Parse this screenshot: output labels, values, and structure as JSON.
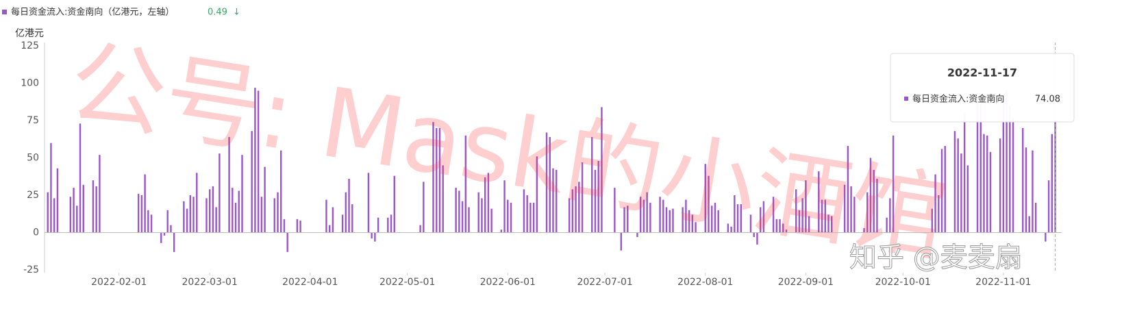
{
  "chart_data": {
    "type": "bar",
    "legend_change": 0.49,
    "legend_arrow": "↓",
    "y_unit_label": "亿港元",
    "tooltip_label": "每日资金流入:资金南向",
    "watermarks": [
      "公号: Mask的小酒馆",
      "知乎 @麦麦扇"
    ],
    "x": [
      "2022-01-10",
      "2022-01-11",
      "2022-01-12",
      "2022-01-13",
      "2022-01-17",
      "2022-01-18",
      "2022-01-19",
      "2022-01-20",
      "2022-01-21",
      "2022-01-24",
      "2022-01-25",
      "2022-01-26",
      "2022-02-07",
      "2022-02-08",
      "2022-02-09",
      "2022-02-10",
      "2022-02-11",
      "2022-02-14",
      "2022-02-15",
      "2022-02-16",
      "2022-02-17",
      "2022-02-18",
      "2022-02-21",
      "2022-02-22",
      "2022-02-23",
      "2022-02-24",
      "2022-02-25",
      "2022-02-28",
      "2022-03-01",
      "2022-03-02",
      "2022-03-03",
      "2022-03-04",
      "2022-03-07",
      "2022-03-08",
      "2022-03-09",
      "2022-03-10",
      "2022-03-11",
      "2022-03-14",
      "2022-03-15",
      "2022-03-16",
      "2022-03-17",
      "2022-03-18",
      "2022-03-21",
      "2022-03-22",
      "2022-03-23",
      "2022-03-24",
      "2022-03-25",
      "2022-03-28",
      "2022-03-29",
      "2022-04-06",
      "2022-04-07",
      "2022-04-08",
      "2022-04-11",
      "2022-04-12",
      "2022-04-13",
      "2022-04-14",
      "2022-04-19",
      "2022-04-20",
      "2022-04-21",
      "2022-04-22",
      "2022-04-25",
      "2022-04-26",
      "2022-04-27",
      "2022-05-05",
      "2022-05-06",
      "2022-05-09",
      "2022-05-10",
      "2022-05-11",
      "2022-05-12",
      "2022-05-16",
      "2022-05-17",
      "2022-05-18",
      "2022-05-19",
      "2022-05-20",
      "2022-05-23",
      "2022-05-24",
      "2022-05-25",
      "2022-05-26",
      "2022-05-27",
      "2022-05-30",
      "2022-05-31",
      "2022-06-01",
      "2022-06-02",
      "2022-06-06",
      "2022-06-07",
      "2022-06-08",
      "2022-06-09",
      "2022-06-10",
      "2022-06-13",
      "2022-06-14",
      "2022-06-15",
      "2022-06-16",
      "2022-06-20",
      "2022-06-21",
      "2022-06-22",
      "2022-06-23",
      "2022-06-24",
      "2022-06-27",
      "2022-06-28",
      "2022-06-29",
      "2022-06-30",
      "2022-07-04",
      "2022-07-06",
      "2022-07-07",
      "2022-07-08",
      "2022-07-11",
      "2022-07-12",
      "2022-07-13",
      "2022-07-14",
      "2022-07-15",
      "2022-07-18",
      "2022-07-19",
      "2022-07-20",
      "2022-07-21",
      "2022-07-22",
      "2022-07-25",
      "2022-07-26",
      "2022-07-27",
      "2022-07-28",
      "2022-07-29",
      "2022-08-01",
      "2022-08-02",
      "2022-08-03",
      "2022-08-04",
      "2022-08-05",
      "2022-08-08",
      "2022-08-09",
      "2022-08-10",
      "2022-08-11",
      "2022-08-12",
      "2022-08-15",
      "2022-08-16",
      "2022-08-17",
      "2022-08-18",
      "2022-08-19",
      "2022-08-22",
      "2022-08-23",
      "2022-08-24",
      "2022-08-25",
      "2022-08-26",
      "2022-08-29",
      "2022-08-30",
      "2022-08-31",
      "2022-09-01",
      "2022-09-02",
      "2022-09-05",
      "2022-09-06",
      "2022-09-07",
      "2022-09-08",
      "2022-09-09",
      "2022-09-13",
      "2022-09-14",
      "2022-09-15",
      "2022-09-16",
      "2022-09-19",
      "2022-09-20",
      "2022-09-21",
      "2022-09-22",
      "2022-09-23",
      "2022-09-26",
      "2022-09-27",
      "2022-09-28",
      "2022-10-10",
      "2022-10-11",
      "2022-10-12",
      "2022-10-13",
      "2022-10-14",
      "2022-10-17",
      "2022-10-18",
      "2022-10-19",
      "2022-10-20",
      "2022-10-21",
      "2022-10-24",
      "2022-10-25",
      "2022-10-26",
      "2022-10-27",
      "2022-10-28",
      "2022-10-31",
      "2022-11-01",
      "2022-11-02",
      "2022-11-03",
      "2022-11-04",
      "2022-11-07",
      "2022-11-08",
      "2022-11-09",
      "2022-11-10",
      "2022-11-11",
      "2022-11-14",
      "2022-11-15",
      "2022-11-16",
      "2022-11-17"
    ],
    "series": [
      {
        "name": "每日资金流入:资金南向（亿港元，左轴）",
        "color": "#9b55cc",
        "values": [
          27,
          60,
          23,
          43,
          24,
          30,
          18,
          73,
          32,
          35,
          31,
          52,
          26,
          25,
          39,
          15,
          12,
          -7,
          -2,
          15,
          5,
          -13,
          21,
          16,
          25,
          24,
          40,
          23,
          29,
          31,
          17,
          53,
          64,
          30,
          20,
          28,
          52,
          68,
          97,
          95,
          24,
          44,
          23,
          27,
          55,
          9,
          -13,
          9,
          8,
          22,
          5,
          17,
          12,
          27,
          36,
          19,
          40,
          -4,
          -6,
          10,
          10,
          12,
          38,
          5,
          34,
          74,
          70,
          70,
          45,
          30,
          28,
          21,
          65,
          17,
          27,
          23,
          37,
          40,
          16,
          2,
          35,
          22,
          20,
          29,
          25,
          20,
          20,
          51,
          67,
          64,
          43,
          42,
          23,
          29,
          31,
          34,
          47,
          64,
          42,
          48,
          84,
          30,
          -12,
          17,
          18,
          -3,
          24,
          22,
          27,
          20,
          24,
          22,
          17,
          15,
          16,
          17,
          22,
          15,
          12,
          7,
          46,
          38,
          18,
          20,
          15,
          6,
          4,
          25,
          19,
          19,
          12,
          -3,
          -8,
          17,
          21,
          24,
          9,
          9,
          6,
          2,
          29,
          15,
          23,
          35,
          11,
          41,
          22,
          22,
          12,
          11,
          32,
          58,
          31,
          24,
          3,
          27,
          50,
          42,
          36,
          10,
          23,
          65,
          16,
          39,
          25,
          56,
          58,
          68,
          63,
          53,
          80,
          45,
          90,
          86,
          66,
          65,
          54,
          63,
          90,
          95,
          85,
          77,
          70,
          57,
          11,
          55,
          20,
          -6,
          35,
          66,
          74.08
        ]
      }
    ],
    "xlim": [
      "2022-01-09",
      "2022-11-19"
    ],
    "xticks": [
      "2022-02-01",
      "2022-03-01",
      "2022-04-01",
      "2022-05-01",
      "2022-06-01",
      "2022-07-01",
      "2022-08-01",
      "2022-09-01",
      "2022-10-01",
      "2022-11-01"
    ],
    "ylim": [
      -25,
      125
    ],
    "yticks": [
      -25,
      0,
      25,
      50,
      75,
      100,
      125
    ]
  }
}
